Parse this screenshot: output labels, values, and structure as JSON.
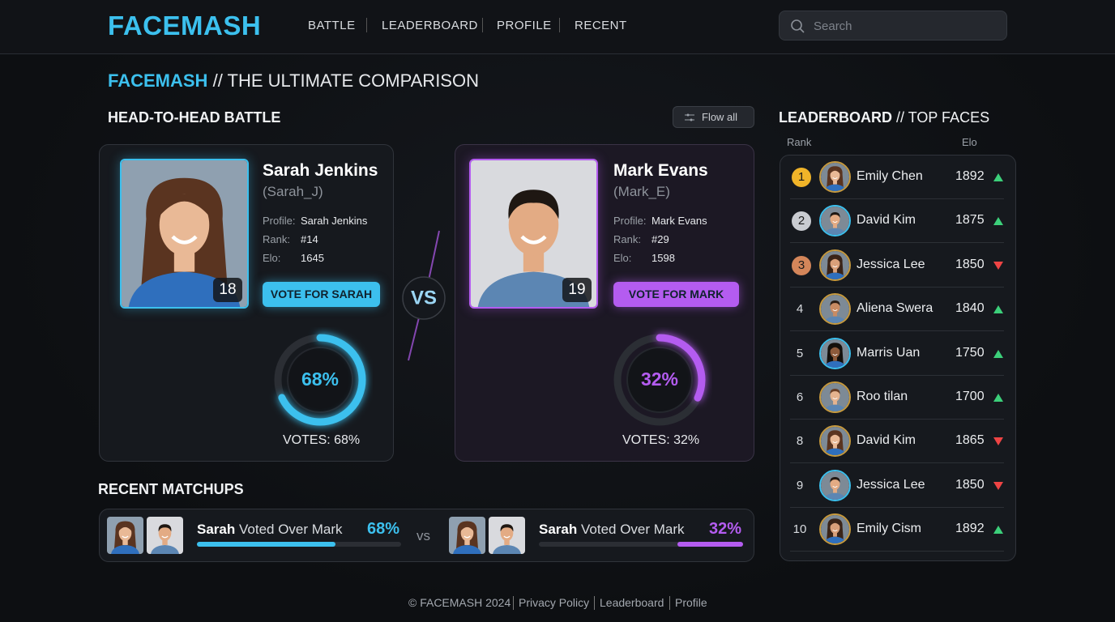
{
  "header": {
    "logo": "FACEMASH",
    "nav": [
      "BATTLE",
      "LEADERBOARD",
      "PROFILE",
      "RECENT"
    ],
    "search_placeholder": "Search"
  },
  "page_title": {
    "brand": "FACEMASH",
    "rest": "// THE ULTIMATE COMPARISON"
  },
  "battle": {
    "title": "HEAD-TO-HEAD BATTLE",
    "filter_button": "Flow all",
    "vs": "VS",
    "contenders": [
      {
        "name": "Sarah Jenkins",
        "handle": "(Sarah_J)",
        "badge": 18,
        "profile_label": "Profile:",
        "profile": "Sarah Jenkins",
        "rank_label": "Rank:",
        "rank": "#14",
        "elo_label": "Elo:",
        "elo": 1645,
        "vote_button": "VOTE FOR SARAH",
        "share": {
          "value": 68,
          "label": "68%"
        },
        "votes_label": "VOTES: 68%",
        "color": "#3cc0ee"
      },
      {
        "name": "Mark Evans",
        "handle": "(Mark_E)",
        "badge": 19,
        "profile_label": "Profile:",
        "profile": "Mark Evans",
        "rank_label": "Rank:",
        "rank": "#29",
        "elo_label": "Elo:",
        "elo": 1598,
        "vote_button": "VOTE FOR MARK",
        "share": {
          "value": 32,
          "label": "32%"
        },
        "votes_label": "VOTES: 32%",
        "color": "#b45cf0"
      }
    ]
  },
  "recent": {
    "title": "RECENT MATCHUPS",
    "vs": "vs",
    "items": [
      {
        "winner": "Sarah",
        "text": "Voted Over Mark",
        "share": {
          "value": 68,
          "label": "68%"
        },
        "color": "#3cc0ee"
      },
      {
        "winner": "Sarah",
        "text": "Voted Over Mark",
        "share": {
          "value": 32,
          "label": "32%"
        },
        "color": "#b45cf0"
      }
    ]
  },
  "leaderboard": {
    "title": "LEADERBOARD",
    "subtitle": "// TOP FACES",
    "columns": [
      "Rank",
      "Elo"
    ],
    "rows": [
      {
        "rank": 1,
        "name": "Emily Chen",
        "elo": 1892,
        "trend": "up"
      },
      {
        "rank": 2,
        "name": "David Kim",
        "elo": 1875,
        "trend": "up"
      },
      {
        "rank": 3,
        "name": "Jessica Lee",
        "elo": 1850,
        "trend": "down"
      },
      {
        "rank": 4,
        "name": "Aliena Swera",
        "elo": 1840,
        "trend": "up"
      },
      {
        "rank": 5,
        "name": "Marris Uan",
        "elo": 1750,
        "trend": "up"
      },
      {
        "rank": 6,
        "name": "Roo tilan",
        "elo": 1700,
        "trend": "up"
      },
      {
        "rank": 8,
        "name": "David Kim",
        "elo": 1865,
        "trend": "down"
      },
      {
        "rank": 9,
        "name": "Jessica Lee",
        "elo": 1850,
        "trend": "down"
      },
      {
        "rank": 10,
        "name": "Emily Cism",
        "elo": 1892,
        "trend": "up"
      }
    ]
  },
  "footer": [
    "© FACEMASH 2024",
    "Privacy Policy",
    "Leaderboard",
    "Profile"
  ]
}
